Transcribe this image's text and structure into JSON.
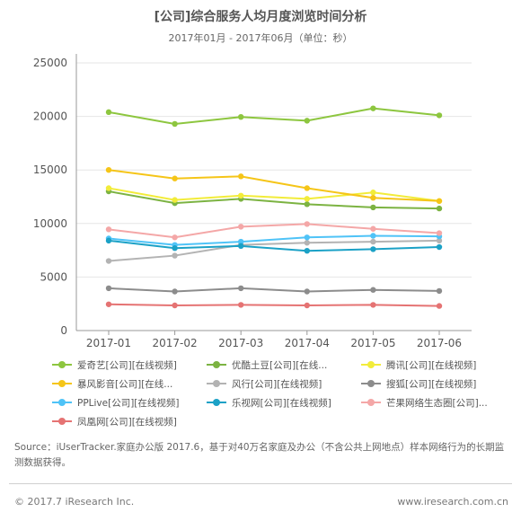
{
  "chart_data": {
    "type": "line",
    "title": "[公司]综合服务人均月度浏览时间分析",
    "subtitle": "2017年01月 - 2017年06月（单位：秒）",
    "categories": [
      "2017-01",
      "2017-02",
      "2017-03",
      "2017-04",
      "2017-05",
      "2017-06"
    ],
    "ylim": [
      0,
      25000
    ],
    "yticks": [
      0,
      5000,
      10000,
      15000,
      20000,
      25000
    ],
    "grid": true,
    "legend_position": "bottom",
    "series": [
      {
        "name": "爱奇艺[公司][在线视频]",
        "color": "#8dc63f",
        "values": [
          20400,
          19300,
          19950,
          19600,
          20750,
          20100
        ]
      },
      {
        "name": "优酷土豆[公司][在线...",
        "color": "#7cb342",
        "values": [
          13000,
          11900,
          12300,
          11800,
          11500,
          11400
        ]
      },
      {
        "name": "腾讯[公司][在线视频]",
        "color": "#f2ec3a",
        "values": [
          13300,
          12200,
          12600,
          12300,
          12900,
          12100
        ]
      },
      {
        "name": "暴风影音[公司][在线...",
        "color": "#f5c518",
        "values": [
          15000,
          14200,
          14400,
          13300,
          12400,
          12100
        ]
      },
      {
        "name": "风行[公司][在线视频]",
        "color": "#b3b3b3",
        "values": [
          6500,
          7000,
          8000,
          8200,
          8300,
          8400
        ]
      },
      {
        "name": "搜狐[公司][在线视频]",
        "color": "#8c8c8c",
        "values": [
          3950,
          3650,
          3950,
          3650,
          3800,
          3700
        ]
      },
      {
        "name": "PPLive[公司][在线视频]",
        "color": "#4fc3f7",
        "values": [
          8600,
          8000,
          8300,
          8700,
          8850,
          8800
        ]
      },
      {
        "name": "乐视网[公司][在线视频]",
        "color": "#1ba1c6",
        "values": [
          8400,
          7700,
          7900,
          7450,
          7600,
          7800
        ]
      },
      {
        "name": "芒果网络生态圈[公司]...",
        "color": "#f4a7a7",
        "values": [
          9450,
          8700,
          9700,
          9950,
          9500,
          9100
        ]
      },
      {
        "name": "凤凰网[公司][在线视频]",
        "color": "#e57373",
        "values": [
          2450,
          2350,
          2400,
          2350,
          2400,
          2300
        ]
      }
    ]
  },
  "source_text": "Source：iUserTracker.家庭办公版 2017.6，基于对40万名家庭及办公（不含公共上网地点）样本网络行为的长期监测数据获得。",
  "copyright": "© 2017.7 iResearch Inc.",
  "website": "www.iresearch.com.cn"
}
